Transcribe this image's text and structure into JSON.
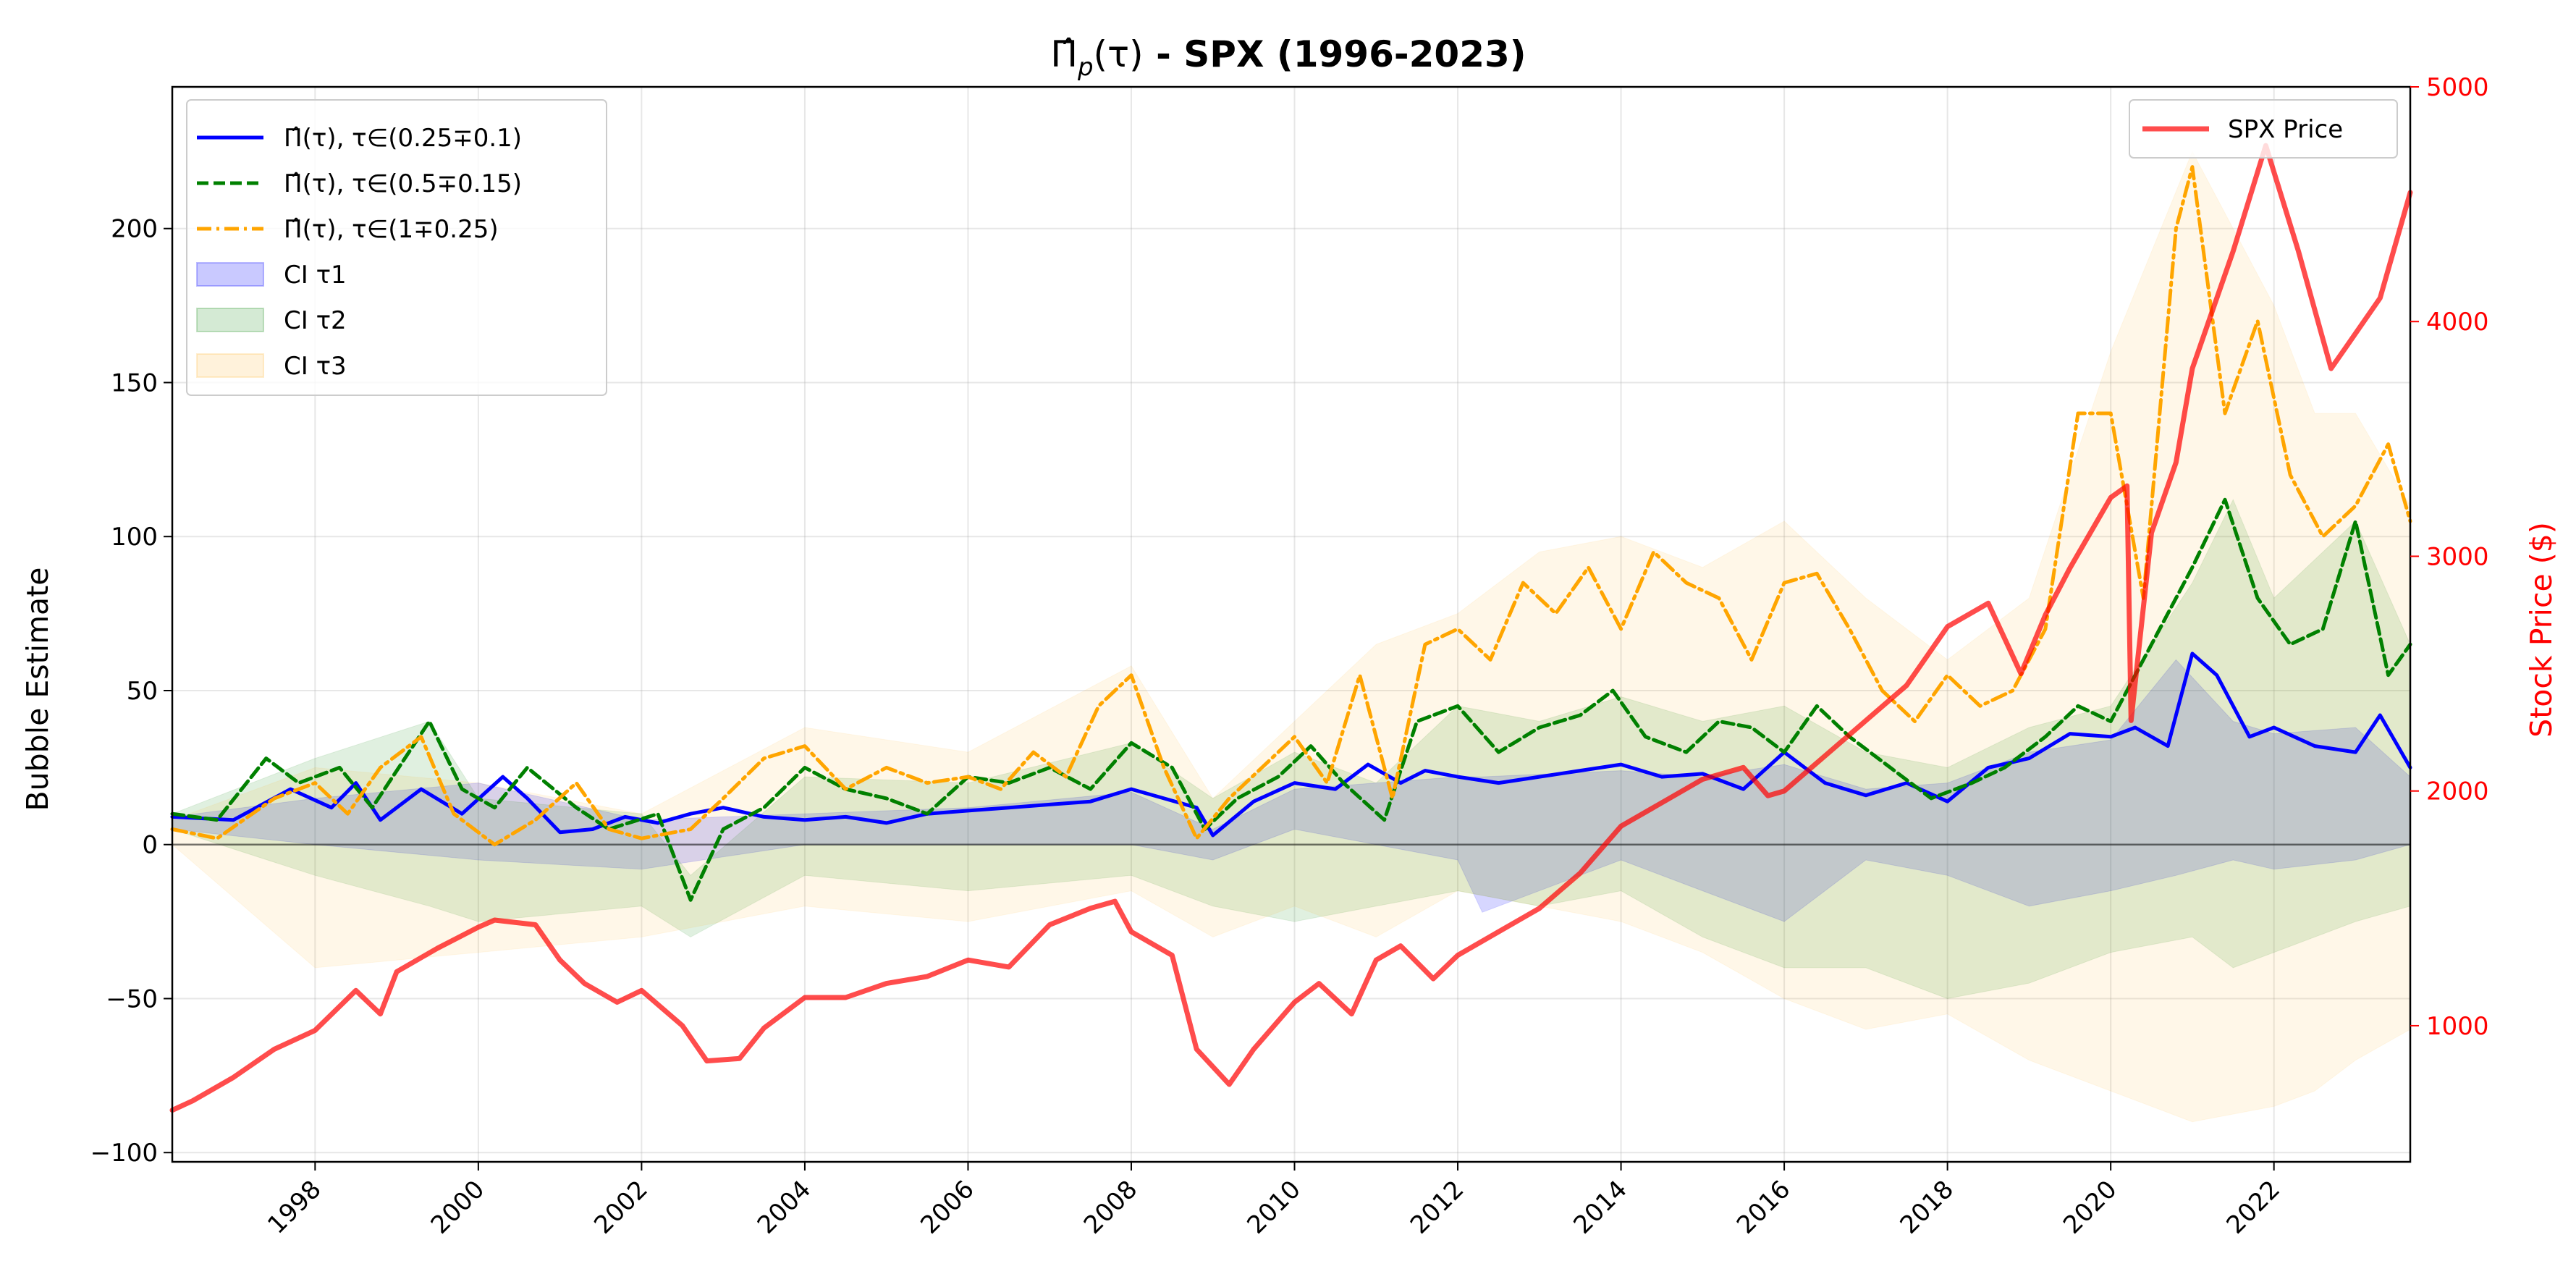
{
  "chart_data": {
    "type": "line",
    "title_math": "Π̂",
    "title_sub": "p",
    "title_arg": "(τ)",
    "title_bold": " - SPX (1996-2023)",
    "ylabel": "Bubble Estimate",
    "ylabel_right": "Stock Price ($)",
    "xlim": [
      1996.25,
      2023.67
    ],
    "ylim": [
      -103,
      246
    ],
    "ylim_right": [
      420,
      5000
    ],
    "x_ticks": [
      1998,
      2000,
      2002,
      2004,
      2006,
      2008,
      2010,
      2012,
      2014,
      2016,
      2018,
      2020,
      2022
    ],
    "x_tick_labels": [
      "1998",
      "2000",
      "2002",
      "2004",
      "2006",
      "2008",
      "2010",
      "2012",
      "2014",
      "2016",
      "2018",
      "2020",
      "2022"
    ],
    "y_ticks": [
      -100,
      -50,
      0,
      50,
      100,
      150,
      200
    ],
    "y_tick_labels": [
      "−100",
      "−50",
      "0",
      "50",
      "100",
      "150",
      "200"
    ],
    "y_right_ticks": [
      1000,
      2000,
      3000,
      4000,
      5000
    ],
    "y_right_tick_labels": [
      "1000",
      "2000",
      "3000",
      "4000",
      "5000"
    ],
    "grid": true,
    "zero_line": true,
    "legend_left_position": "upper-left",
    "legend_right_position": "upper-right",
    "series": [
      {
        "name": "Π̂(τ), τ∈(0.25∓0.1)",
        "color": "#0000ff",
        "style": "solid",
        "x": [
          1996.25,
          1997,
          1997.7,
          1998.2,
          1998.5,
          1998.8,
          1999.3,
          1999.8,
          2000.3,
          2000.6,
          2001,
          2001.4,
          2001.8,
          2002.2,
          2002.6,
          2003,
          2003.5,
          2004,
          2004.5,
          2005,
          2005.5,
          2006,
          2006.5,
          2007,
          2007.5,
          2008,
          2008.4,
          2008.8,
          2009,
          2009.5,
          2010,
          2010.5,
          2010.9,
          2011.3,
          2011.6,
          2012,
          2012.5,
          2013,
          2013.5,
          2014,
          2014.5,
          2015,
          2015.5,
          2016,
          2016.5,
          2017,
          2017.5,
          2018,
          2018.5,
          2019,
          2019.5,
          2020,
          2020.3,
          2020.7,
          2021,
          2021.3,
          2021.7,
          2022,
          2022.5,
          2023,
          2023.3,
          2023.67
        ],
        "values": [
          9,
          8,
          18,
          12,
          20,
          8,
          18,
          10,
          22,
          15,
          4,
          5,
          9,
          7,
          10,
          12,
          9,
          8,
          9,
          7,
          10,
          11,
          12,
          13,
          14,
          18,
          15,
          12,
          3,
          14,
          20,
          18,
          26,
          20,
          24,
          22,
          20,
          22,
          24,
          26,
          22,
          23,
          18,
          30,
          20,
          16,
          20,
          14,
          25,
          28,
          36,
          35,
          38,
          32,
          62,
          55,
          35,
          38,
          32,
          30,
          42,
          25
        ]
      },
      {
        "name": "Π̂(τ), τ∈(0.5∓0.15)",
        "color": "#008000",
        "style": "dashed",
        "x": [
          1996.25,
          1996.8,
          1997.4,
          1997.8,
          1998.3,
          1998.7,
          1999.4,
          1999.8,
          2000.2,
          2000.6,
          2001.2,
          2001.6,
          2002.2,
          2002.6,
          2003,
          2003.5,
          2004,
          2004.5,
          2005,
          2005.5,
          2006,
          2006.5,
          2007,
          2007.5,
          2008,
          2008.5,
          2008.9,
          2009.3,
          2009.8,
          2010.2,
          2010.6,
          2011.1,
          2011.5,
          2012,
          2012.5,
          2013,
          2013.5,
          2013.9,
          2014.3,
          2014.8,
          2015.2,
          2015.6,
          2016,
          2016.4,
          2016.8,
          2017.3,
          2017.8,
          2018.3,
          2018.7,
          2019.2,
          2019.6,
          2020,
          2020.3,
          2020.7,
          2021,
          2021.4,
          2021.8,
          2022.2,
          2022.6,
          2023,
          2023.4,
          2023.67
        ],
        "values": [
          10,
          8,
          28,
          20,
          25,
          12,
          40,
          18,
          12,
          25,
          12,
          5,
          10,
          -18,
          5,
          12,
          25,
          18,
          15,
          10,
          22,
          20,
          25,
          18,
          33,
          25,
          5,
          15,
          22,
          32,
          20,
          8,
          40,
          45,
          30,
          38,
          42,
          50,
          35,
          30,
          40,
          38,
          30,
          45,
          35,
          25,
          15,
          20,
          25,
          35,
          45,
          40,
          55,
          75,
          90,
          112,
          80,
          65,
          70,
          105,
          55,
          65
        ]
      },
      {
        "name": "Π̂(τ), τ∈(1∓0.25)",
        "color": "#ffa500",
        "style": "dashdot",
        "x": [
          1996.25,
          1996.8,
          1997.5,
          1998,
          1998.4,
          1998.8,
          1999.3,
          1999.7,
          2000.2,
          2000.7,
          2001.2,
          2001.6,
          2002,
          2002.6,
          2003,
          2003.5,
          2004,
          2004.5,
          2005,
          2005.5,
          2006,
          2006.4,
          2006.8,
          2007.2,
          2007.6,
          2008,
          2008.4,
          2008.8,
          2009.2,
          2009.6,
          2010,
          2010.4,
          2010.8,
          2011.2,
          2011.6,
          2012,
          2012.4,
          2012.8,
          2013.2,
          2013.6,
          2014,
          2014.4,
          2014.8,
          2015.2,
          2015.6,
          2016,
          2016.4,
          2016.8,
          2017.2,
          2017.6,
          2018,
          2018.4,
          2018.8,
          2019.2,
          2019.6,
          2020,
          2020.4,
          2020.8,
          2021,
          2021.4,
          2021.8,
          2022.2,
          2022.6,
          2023,
          2023.4,
          2023.67
        ],
        "values": [
          5,
          2,
          15,
          20,
          10,
          25,
          35,
          10,
          0,
          8,
          20,
          5,
          2,
          5,
          15,
          28,
          32,
          18,
          25,
          20,
          22,
          18,
          30,
          22,
          45,
          55,
          25,
          2,
          15,
          25,
          35,
          20,
          55,
          15,
          65,
          70,
          60,
          85,
          75,
          90,
          70,
          95,
          85,
          80,
          60,
          85,
          88,
          70,
          50,
          40,
          55,
          45,
          50,
          70,
          140,
          140,
          80,
          200,
          220,
          140,
          170,
          120,
          100,
          110,
          130,
          105
        ]
      },
      {
        "name": "SPX Price",
        "color": "#ff0000",
        "style": "solid",
        "axis": "right",
        "x": [
          1996.25,
          1996.5,
          1997,
          1997.5,
          1998,
          1998.5,
          1998.8,
          1999,
          1999.5,
          2000,
          2000.2,
          2000.7,
          2001,
          2001.3,
          2001.7,
          2002,
          2002.5,
          2002.8,
          2003.2,
          2003.5,
          2004,
          2004.5,
          2005,
          2005.5,
          2006,
          2006.5,
          2007,
          2007.5,
          2007.8,
          2008,
          2008.5,
          2008.8,
          2009.2,
          2009.5,
          2010,
          2010.3,
          2010.7,
          2011,
          2011.3,
          2011.7,
          2012,
          2012.5,
          2013,
          2013.5,
          2014,
          2014.5,
          2015,
          2015.5,
          2015.8,
          2016,
          2016.5,
          2017,
          2017.5,
          2018,
          2018.5,
          2018.9,
          2019.2,
          2019.5,
          2020,
          2020.2,
          2020.25,
          2020.5,
          2020.8,
          2021,
          2021.5,
          2021.9,
          2022.3,
          2022.7,
          2022.9,
          2023.3,
          2023.67
        ],
        "values": [
          640,
          680,
          780,
          900,
          980,
          1150,
          1050,
          1230,
          1330,
          1420,
          1450,
          1430,
          1280,
          1180,
          1100,
          1150,
          1000,
          850,
          860,
          990,
          1120,
          1120,
          1180,
          1210,
          1280,
          1250,
          1430,
          1500,
          1530,
          1400,
          1300,
          900,
          750,
          900,
          1100,
          1180,
          1050,
          1280,
          1340,
          1200,
          1300,
          1400,
          1500,
          1650,
          1850,
          1950,
          2050,
          2100,
          1980,
          2000,
          2150,
          2300,
          2450,
          2700,
          2800,
          2500,
          2750,
          2950,
          3250,
          3300,
          2300,
          3100,
          3400,
          3800,
          4300,
          4750,
          4300,
          3800,
          3900,
          4100,
          4550
        ]
      }
    ],
    "ci_bands": [
      {
        "name": "CI τ1",
        "color": "#0000ff",
        "alpha": 0.16,
        "x": [
          1996.25,
          1998,
          2000,
          2002,
          2004,
          2006,
          2008,
          2009,
          2010,
          2012,
          2012.3,
          2014,
          2015,
          2016,
          2017,
          2018,
          2019,
          2020,
          2020.8,
          2021.5,
          2022,
          2023,
          2023.67
        ],
        "upper": [
          9,
          15,
          20,
          8,
          10,
          12,
          17,
          5,
          18,
          22,
          22,
          24,
          22,
          26,
          18,
          20,
          30,
          34,
          60,
          40,
          36,
          38,
          22
        ],
        "lower": [
          5,
          0,
          -5,
          -8,
          0,
          0,
          0,
          -5,
          5,
          -5,
          -22,
          -5,
          -15,
          -25,
          -5,
          -10,
          -20,
          -15,
          -10,
          -5,
          -8,
          -5,
          0
        ]
      },
      {
        "name": "CI τ2",
        "color": "#008000",
        "alpha": 0.12,
        "x": [
          1996.25,
          1998,
          1999.4,
          2000,
          2002,
          2002.6,
          2004,
          2006,
          2008,
          2009,
          2010,
          2011,
          2012,
          2013,
          2014,
          2015,
          2016,
          2017,
          2018,
          2019,
          2020,
          2021,
          2021.5,
          2022,
          2023,
          2023.67
        ],
        "upper": [
          10,
          28,
          40,
          15,
          10,
          -10,
          22,
          20,
          33,
          15,
          30,
          20,
          45,
          40,
          48,
          40,
          45,
          30,
          25,
          38,
          45,
          85,
          112,
          80,
          105,
          65
        ],
        "lower": [
          5,
          -10,
          -20,
          -25,
          -20,
          -30,
          -10,
          -15,
          -10,
          -20,
          -25,
          -20,
          -15,
          -20,
          -15,
          -30,
          -40,
          -40,
          -50,
          -45,
          -35,
          -30,
          -40,
          -35,
          -25,
          -20
        ]
      },
      {
        "name": "CI τ3",
        "color": "#ffa500",
        "alpha": 0.09,
        "x": [
          1996.25,
          1998,
          2000,
          2002,
          2004,
          2006,
          2008,
          2009,
          2010,
          2011,
          2012,
          2013,
          2014,
          2015,
          2016,
          2017,
          2018,
          2019,
          2020,
          2021,
          2022,
          2022.5,
          2023,
          2023.67
        ],
        "upper": [
          8,
          25,
          20,
          10,
          38,
          30,
          58,
          15,
          40,
          65,
          75,
          95,
          100,
          90,
          105,
          80,
          60,
          80,
          160,
          225,
          175,
          140,
          140,
          110
        ],
        "lower": [
          0,
          -40,
          -35,
          -30,
          -20,
          -25,
          -15,
          -30,
          -20,
          -30,
          -15,
          -20,
          -25,
          -35,
          -50,
          -60,
          -55,
          -70,
          -80,
          -90,
          -85,
          -80,
          -70,
          -60
        ]
      }
    ]
  }
}
